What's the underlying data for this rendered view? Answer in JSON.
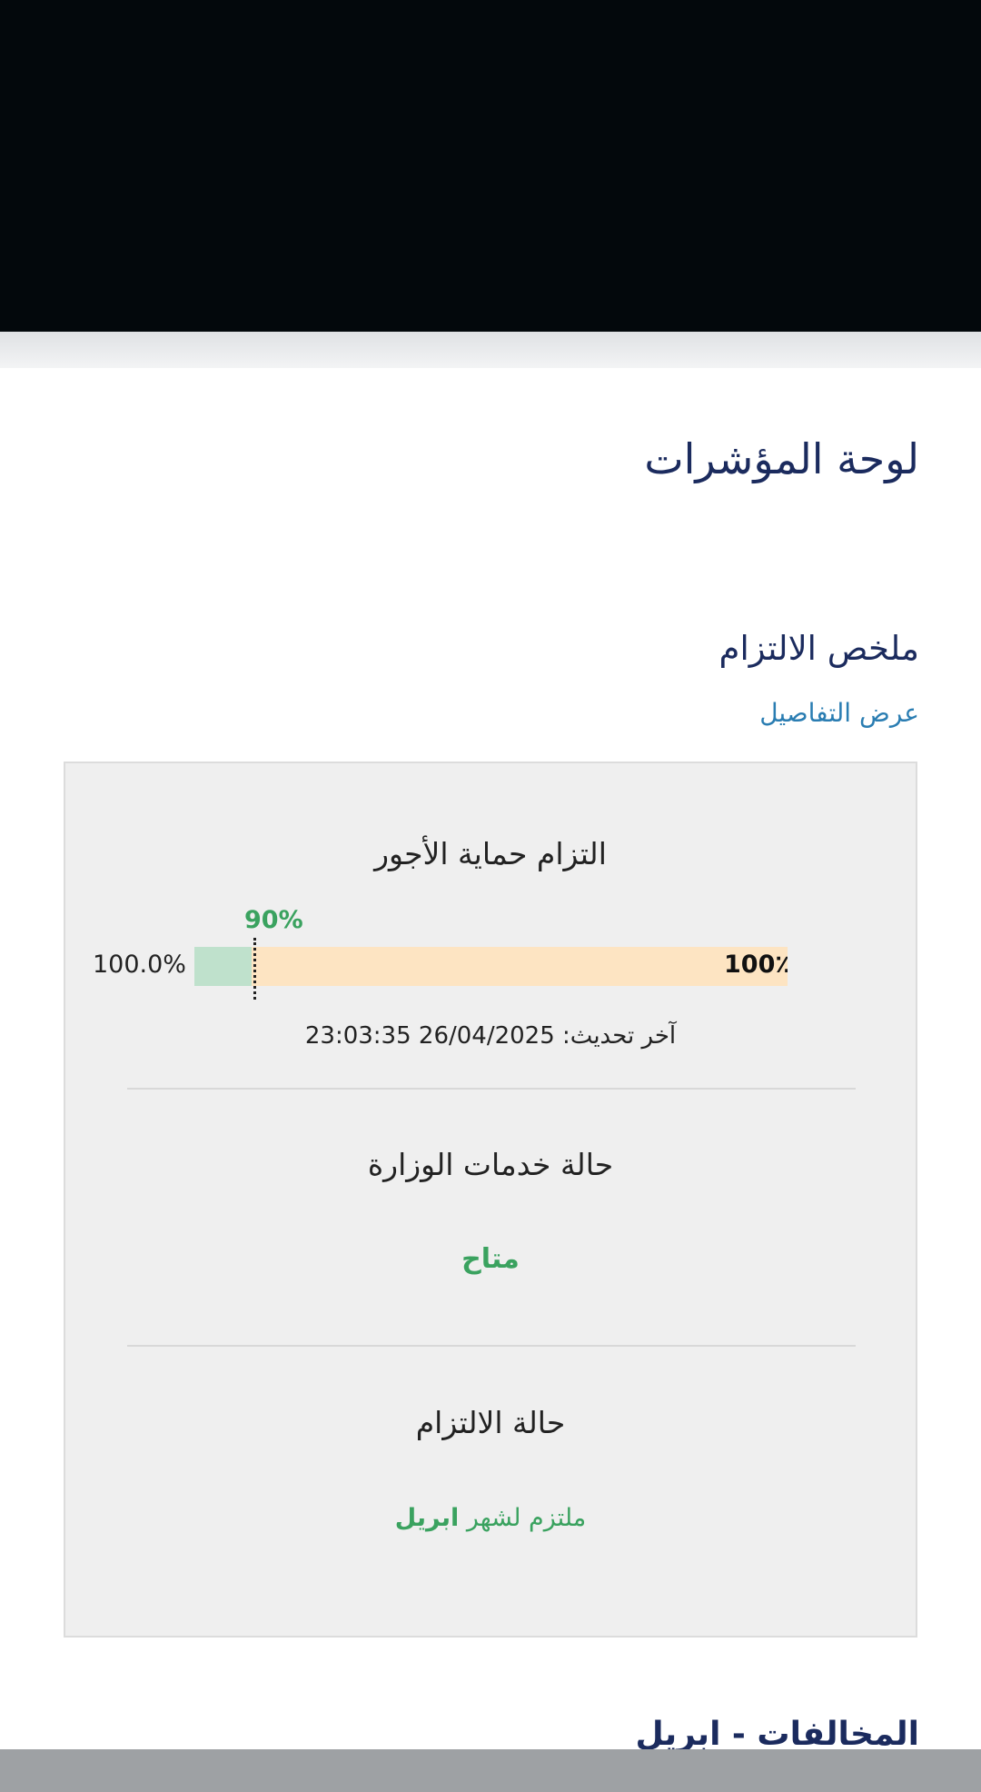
{
  "header": {
    "title": "لوحة المؤشرات"
  },
  "summary": {
    "title": "ملخص الالتزام",
    "details_link": "عرض التفاصيل"
  },
  "card": {
    "wage_protection": {
      "title": "التزام حماية الأجور",
      "value_label": "100.0%",
      "target_label": "90%",
      "bar_end_label": "100٪",
      "value_percent": 100,
      "target_percent": 90,
      "last_update_label": "آخر تحديث:",
      "last_update": "26/04/2025 23:03:35"
    },
    "ministry_services": {
      "title": "حالة خدمات الوزارة",
      "status": "متاح"
    },
    "compliance": {
      "title": "حالة الالتزام",
      "status_prefix": "ملتزم لشهر",
      "status_month": "ابريل"
    }
  },
  "violations": {
    "title": "المخالفات - ابريل"
  },
  "colors": {
    "navy": "#1b2b5e",
    "link": "#2a7db2",
    "green": "#3aa25f",
    "bar_bg": "#fde4c2",
    "bar_fill": "#bfe1cc"
  }
}
